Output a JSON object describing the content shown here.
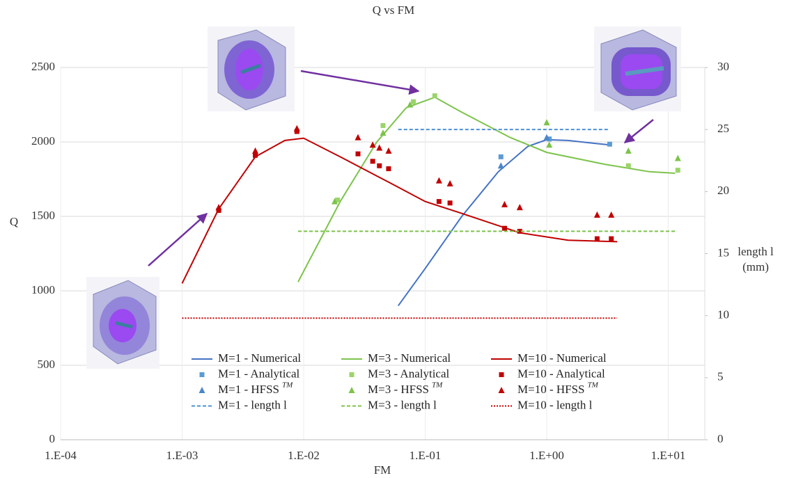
{
  "chart_data": {
    "type": "line",
    "title": "Q vs FM",
    "x_label": "FM",
    "y_label": "Q",
    "y2_label": [
      "length l",
      "(mm)"
    ],
    "log_x": true,
    "grid": true,
    "xlim": [
      0.0001,
      20
    ],
    "xticks": [
      {
        "value": 0.0001,
        "label": "1.E-04"
      },
      {
        "value": 0.001,
        "label": "1.E-03"
      },
      {
        "value": 0.01,
        "label": "1.E-02"
      },
      {
        "value": 0.1,
        "label": "1.E-01"
      },
      {
        "value": 1,
        "label": "1.E+00"
      },
      {
        "value": 10,
        "label": "1.E+01"
      }
    ],
    "ylim": [
      0,
      2500
    ],
    "yticks": [
      0,
      500,
      1000,
      1500,
      2000,
      2500
    ],
    "y2lim": [
      0,
      30
    ],
    "y2ticks": [
      0,
      5,
      10,
      15,
      20,
      25,
      30
    ],
    "series": [
      {
        "name": "M=1 - Numerical",
        "color": "#4472c4",
        "style": "line",
        "x": [
          0.06,
          0.1,
          0.2,
          0.4,
          0.7,
          1.0,
          1.5,
          2.5,
          3.3
        ],
        "values": [
          900,
          1150,
          1500,
          1800,
          1970,
          2015,
          2010,
          1990,
          1980
        ]
      },
      {
        "name": "M=3 - Numerical",
        "color": "#7cc34a",
        "style": "line",
        "x": [
          0.009,
          0.02,
          0.04,
          0.07,
          0.12,
          0.2,
          0.5,
          1,
          3,
          7,
          11.4
        ],
        "values": [
          1060,
          1600,
          2000,
          2230,
          2300,
          2200,
          2030,
          1930,
          1850,
          1800,
          1790
        ]
      },
      {
        "name": "M=10 - Numerical",
        "color": "#c00000",
        "style": "line",
        "x": [
          0.001,
          0.002,
          0.004,
          0.007,
          0.01,
          0.02,
          0.05,
          0.1,
          0.2,
          0.6,
          1.5,
          3.8
        ],
        "values": [
          1050,
          1550,
          1900,
          2010,
          2025,
          1900,
          1730,
          1600,
          1520,
          1390,
          1340,
          1330
        ]
      },
      {
        "name": "M=1 - Analytical",
        "color": "#5b9bd5",
        "style": "square",
        "x": [
          0.42,
          1.05,
          3.3
        ],
        "values": [
          1900,
          2020,
          1985
        ]
      },
      {
        "name": "M=3 - Analytical",
        "color": "#9bd46a",
        "style": "square",
        "x": [
          0.019,
          0.045,
          0.08,
          0.12,
          4.7,
          12
        ],
        "values": [
          1610,
          2110,
          2270,
          2310,
          1840,
          1810
        ]
      },
      {
        "name": "M=10 - Analytical",
        "color": "#c00000",
        "style": "square",
        "x": [
          0.002,
          0.004,
          0.0088,
          0.028,
          0.037,
          0.042,
          0.05,
          0.13,
          0.16,
          0.45,
          0.6,
          2.6,
          3.4
        ],
        "values": [
          1540,
          1910,
          2070,
          1920,
          1870,
          1840,
          1820,
          1600,
          1590,
          1420,
          1400,
          1350,
          1350
        ]
      },
      {
        "name": "M=1 - HFSS",
        "name_superscript": "TM",
        "color": "#4a86c8",
        "style": "triangle",
        "x": [
          0.42,
          1.0
        ],
        "values": [
          1840,
          2030
        ]
      },
      {
        "name": "M=3 - HFSS",
        "name_superscript": "TM",
        "color": "#7cc34a",
        "style": "triangle",
        "x": [
          0.018,
          0.045,
          0.075,
          1.0,
          1.05,
          4.7,
          12
        ],
        "values": [
          1600,
          2060,
          2250,
          2130,
          1980,
          1940,
          1890
        ]
      },
      {
        "name": "M=10 - HFSS",
        "name_superscript": "TM",
        "color": "#c00000",
        "style": "triangle",
        "x": [
          0.002,
          0.004,
          0.0088,
          0.028,
          0.037,
          0.042,
          0.05,
          0.13,
          0.16,
          0.45,
          0.6,
          2.6,
          3.4
        ],
        "values": [
          1560,
          1940,
          2090,
          2030,
          1980,
          1960,
          1940,
          1740,
          1720,
          1580,
          1560,
          1510,
          1510
        ]
      },
      {
        "name": "M=1 - length l",
        "color": "#4a90d9",
        "style": "dash",
        "axis": "y2",
        "x": [
          0.06,
          3.3
        ],
        "values": [
          25,
          25
        ]
      },
      {
        "name": "M=3 - length l",
        "color": "#7cc34a",
        "style": "dash",
        "axis": "y2",
        "x": [
          0.009,
          11.4
        ],
        "values": [
          16.8,
          16.8
        ]
      },
      {
        "name": "M=10 - length l",
        "color": "#c00000",
        "style": "dot",
        "axis": "y2",
        "x": [
          0.001,
          3.8
        ],
        "values": [
          9.8,
          9.8
        ]
      }
    ]
  }
}
